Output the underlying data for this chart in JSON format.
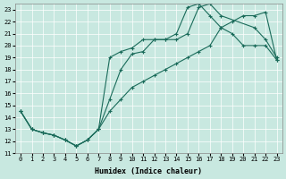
{
  "xlabel": "Humidex (Indice chaleur)",
  "bg_color": "#c8e8e0",
  "line_color": "#1a6b5a",
  "xlim": [
    -0.5,
    23.5
  ],
  "ylim": [
    11,
    23.5
  ],
  "xticks": [
    0,
    1,
    2,
    3,
    4,
    5,
    6,
    7,
    8,
    9,
    10,
    11,
    12,
    13,
    14,
    15,
    16,
    17,
    18,
    19,
    20,
    21,
    22,
    23
  ],
  "yticks": [
    11,
    12,
    13,
    14,
    15,
    16,
    17,
    18,
    19,
    20,
    21,
    22,
    23
  ],
  "line1_x": [
    0,
    1,
    2,
    3,
    4,
    5,
    6,
    7,
    8,
    9,
    10,
    11,
    12,
    13,
    14,
    15,
    16,
    17,
    18,
    19,
    20,
    21,
    22,
    23
  ],
  "line1_y": [
    14.5,
    13.0,
    12.7,
    12.5,
    12.1,
    11.6,
    12.1,
    13.0,
    19.0,
    19.5,
    19.8,
    20.5,
    20.5,
    20.5,
    21.0,
    23.2,
    23.5,
    22.5,
    21.5,
    21.0,
    20.0,
    20.0,
    20.0,
    18.8
  ],
  "line2_x": [
    0,
    1,
    2,
    3,
    4,
    5,
    6,
    7,
    8,
    9,
    10,
    11,
    12,
    13,
    14,
    15,
    16,
    17,
    18,
    21,
    22,
    23
  ],
  "line2_y": [
    14.5,
    13.0,
    12.7,
    12.5,
    12.1,
    11.6,
    12.1,
    13.0,
    15.5,
    18.0,
    19.3,
    19.5,
    20.5,
    20.5,
    20.5,
    21.0,
    23.2,
    23.5,
    22.5,
    21.5,
    20.5,
    19.0
  ],
  "line3_x": [
    0,
    1,
    2,
    3,
    4,
    5,
    6,
    7,
    8,
    9,
    10,
    11,
    12,
    13,
    14,
    15,
    16,
    17,
    18,
    19,
    20,
    21,
    22,
    23
  ],
  "line3_y": [
    14.5,
    13.0,
    12.7,
    12.5,
    12.1,
    11.6,
    12.1,
    13.0,
    14.5,
    15.5,
    16.5,
    17.0,
    17.5,
    18.0,
    18.5,
    19.0,
    19.5,
    20.0,
    21.5,
    22.0,
    22.5,
    22.5,
    22.8,
    18.8
  ]
}
